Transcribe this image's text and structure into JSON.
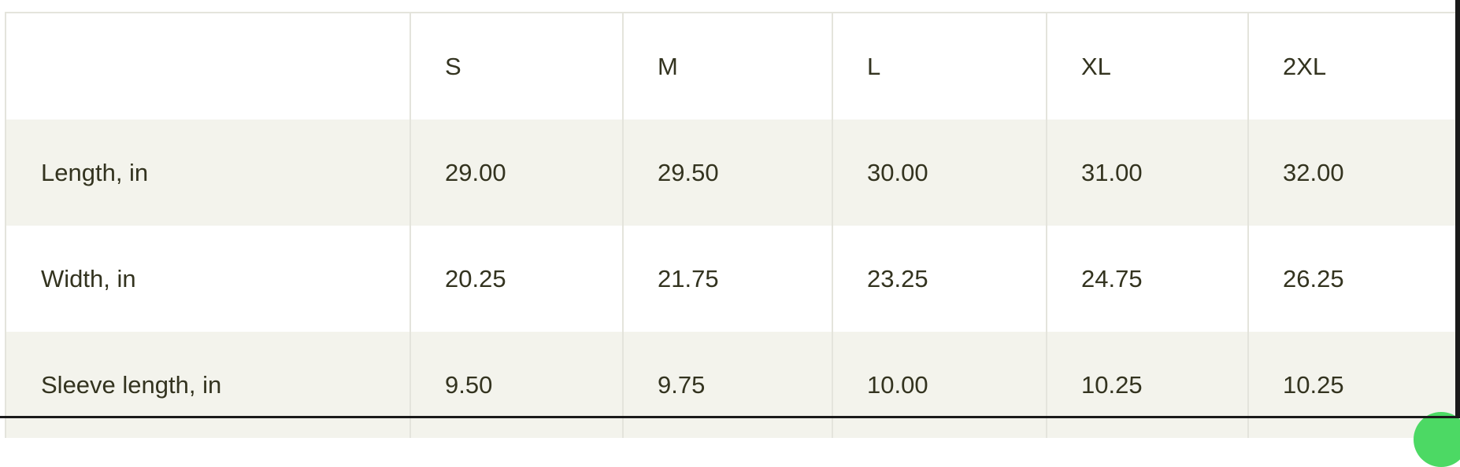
{
  "size_chart": {
    "columns": [
      "",
      "S",
      "M",
      "L",
      "XL",
      "2XL"
    ],
    "rows": [
      {
        "label": "Length, in",
        "values": [
          "29.00",
          "29.50",
          "30.00",
          "31.00",
          "32.00"
        ]
      },
      {
        "label": "Width, in",
        "values": [
          "20.25",
          "21.75",
          "23.25",
          "24.75",
          "26.25"
        ]
      },
      {
        "label": "Sleeve length, in",
        "values": [
          "9.50",
          "9.75",
          "10.00",
          "10.25",
          "10.25"
        ]
      }
    ]
  },
  "colors": {
    "text": "#33331f",
    "alt_row": "#f3f3ec",
    "border": "#e4e4dc"
  }
}
